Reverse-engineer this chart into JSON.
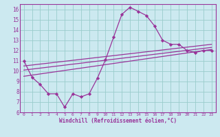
{
  "xlabel": "Windchill (Refroidissement éolien,°C)",
  "bg_color": "#cce9f0",
  "line_color": "#993399",
  "grid_color": "#99cccc",
  "xlim": [
    -0.5,
    23.5
  ],
  "ylim": [
    6,
    16.5
  ],
  "xticks": [
    0,
    1,
    2,
    3,
    4,
    5,
    6,
    7,
    8,
    9,
    10,
    11,
    12,
    13,
    14,
    15,
    16,
    17,
    18,
    19,
    20,
    21,
    22,
    23
  ],
  "yticks": [
    6,
    7,
    8,
    9,
    10,
    11,
    12,
    13,
    14,
    15,
    16
  ],
  "series1_x": [
    0,
    1,
    2,
    3,
    4,
    5,
    6,
    7,
    8,
    9,
    10,
    11,
    12,
    13,
    14,
    15,
    16,
    17,
    18,
    19,
    20,
    21,
    22,
    23
  ],
  "series1_y": [
    11.0,
    9.4,
    8.7,
    7.8,
    7.8,
    6.5,
    7.8,
    7.5,
    7.8,
    9.3,
    11.1,
    13.3,
    15.5,
    16.2,
    15.8,
    15.4,
    14.4,
    13.0,
    12.6,
    12.6,
    12.0,
    11.8,
    12.0,
    12.0
  ],
  "series2_x": [
    0,
    23
  ],
  "series2_y": [
    9.5,
    12.1
  ],
  "series3_x": [
    0,
    23
  ],
  "series3_y": [
    10.1,
    12.3
  ],
  "series4_x": [
    0,
    23
  ],
  "series4_y": [
    10.5,
    12.6
  ]
}
